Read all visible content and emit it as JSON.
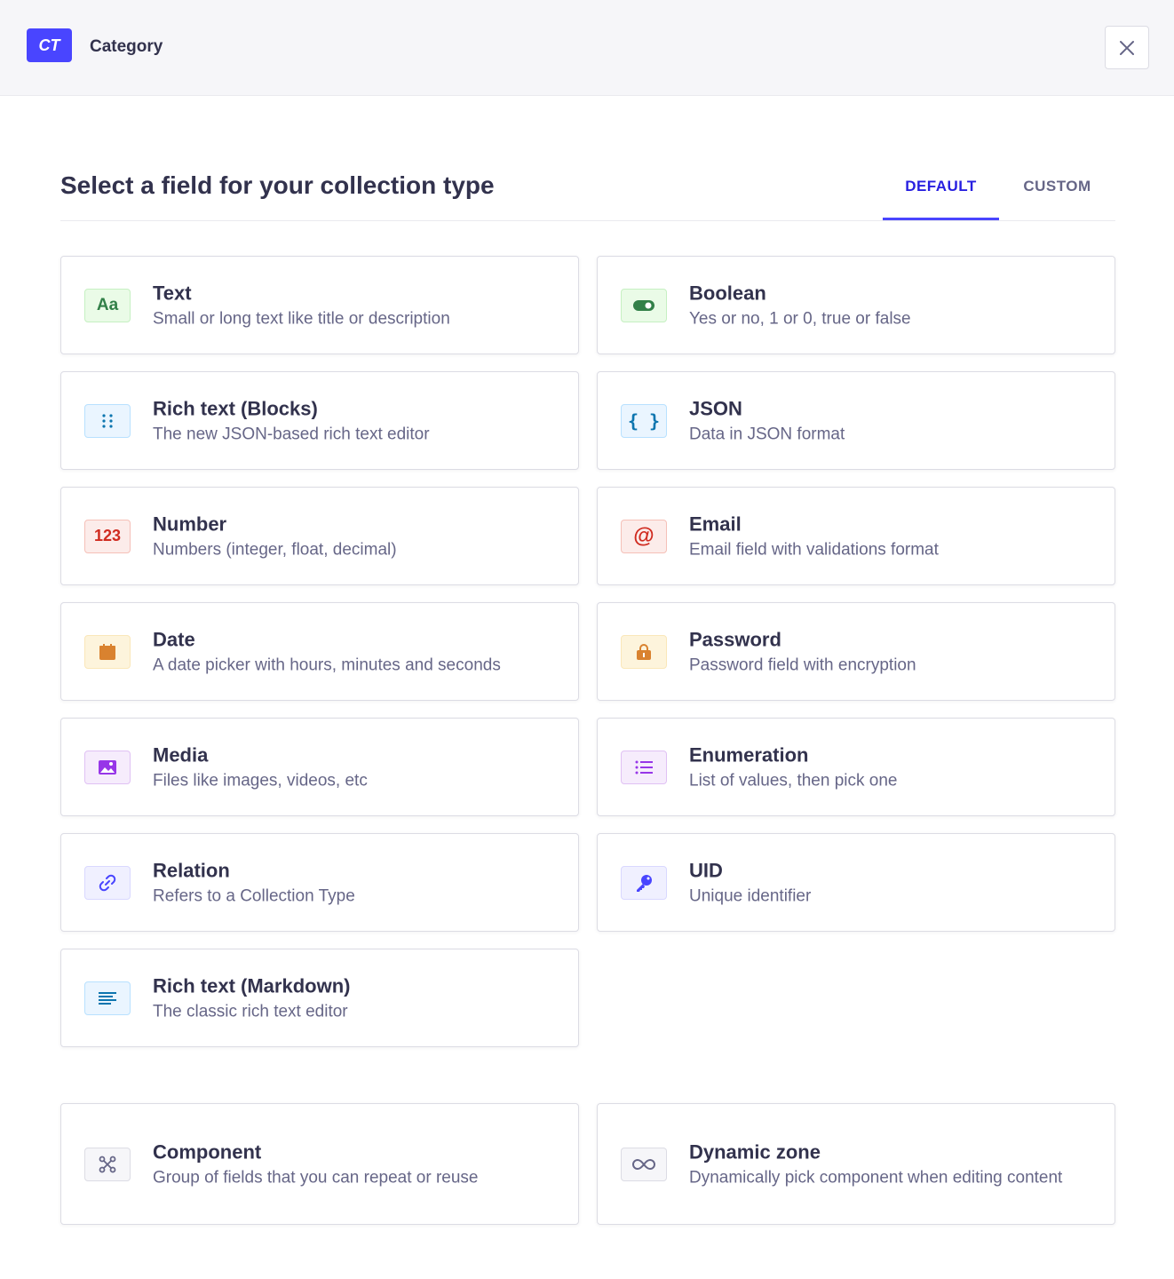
{
  "header": {
    "badge": "CT",
    "title": "Category"
  },
  "title": "Select a field for your collection type",
  "tabs": [
    {
      "label": "DEFAULT",
      "active": true
    },
    {
      "label": "CUSTOM",
      "active": false
    }
  ],
  "fields": [
    {
      "name": "Text",
      "description": "Small or long text like title or description",
      "icon": "text-icon",
      "color": "green"
    },
    {
      "name": "Boolean",
      "description": "Yes or no, 1 or 0, true or false",
      "icon": "toggle-icon",
      "color": "green"
    },
    {
      "name": "Rich text (Blocks)",
      "description": "The new JSON-based rich text editor",
      "icon": "blocks-icon",
      "color": "blue"
    },
    {
      "name": "JSON",
      "description": "Data in JSON format",
      "icon": "braces-icon",
      "color": "blue"
    },
    {
      "name": "Number",
      "description": "Numbers (integer, float, decimal)",
      "icon": "number-icon",
      "color": "red"
    },
    {
      "name": "Email",
      "description": "Email field with validations format",
      "icon": "at-icon",
      "color": "red"
    },
    {
      "name": "Date",
      "description": "A date picker with hours, minutes and seconds",
      "icon": "calendar-icon",
      "color": "orange"
    },
    {
      "name": "Password",
      "description": "Password field with encryption",
      "icon": "lock-icon",
      "color": "orange"
    },
    {
      "name": "Media",
      "description": "Files like images, videos, etc",
      "icon": "image-icon",
      "color": "purple"
    },
    {
      "name": "Enumeration",
      "description": "List of values, then pick one",
      "icon": "list-icon",
      "color": "purple"
    },
    {
      "name": "Relation",
      "description": "Refers to a Collection Type",
      "icon": "link-icon",
      "color": "indigo"
    },
    {
      "name": "UID",
      "description": "Unique identifier",
      "icon": "key-icon",
      "color": "indigo"
    },
    {
      "name": "Rich text (Markdown)",
      "description": "The classic rich text editor",
      "icon": "paragraph-icon",
      "color": "blue"
    }
  ],
  "structures": [
    {
      "name": "Component",
      "description": "Group of fields that you can repeat or reuse",
      "icon": "component-icon",
      "color": "gray"
    },
    {
      "name": "Dynamic zone",
      "description": "Dynamically pick component when editing content",
      "icon": "infinity-icon",
      "color": "gray"
    }
  ],
  "icon_text": {
    "text": "Aa",
    "number": "123",
    "json": "{ }",
    "at": "@"
  }
}
